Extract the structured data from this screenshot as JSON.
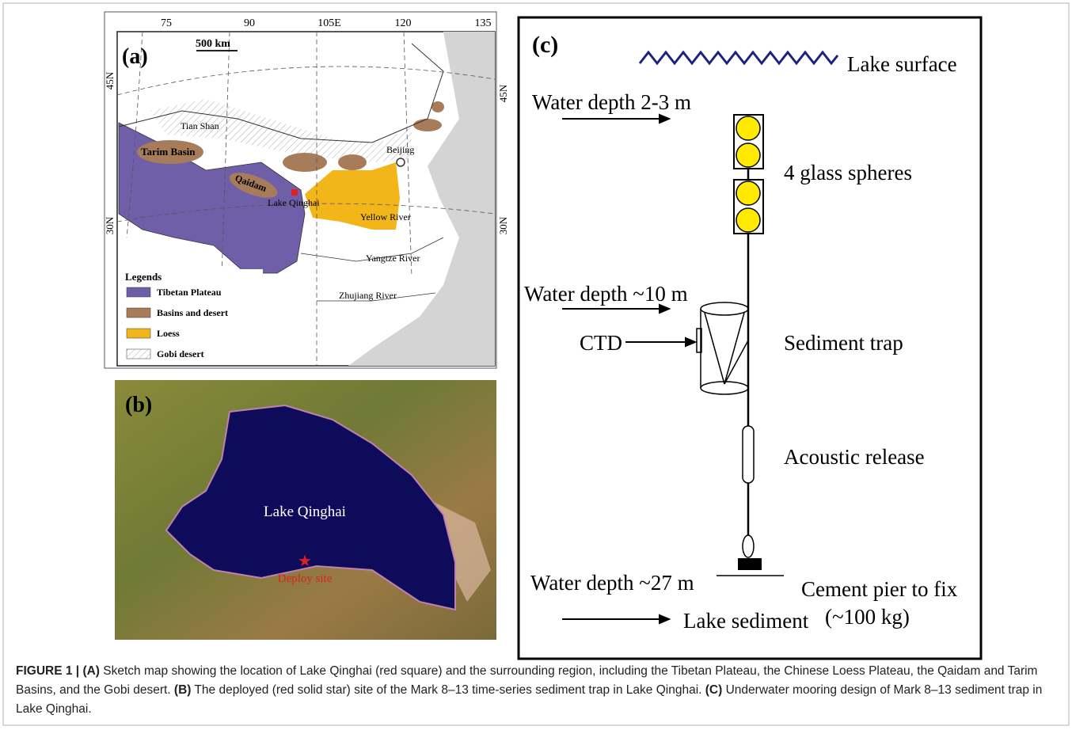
{
  "panel_a": {
    "label": "(a)",
    "scale": "500 km",
    "lon_ticks": [
      "75",
      "90",
      "105E",
      "120",
      "135"
    ],
    "lat_ticks_left": [
      "45N",
      "30N"
    ],
    "lat_ticks_right": [
      "45N",
      "30N"
    ],
    "places": [
      "Tian Shan",
      "Tarim Basin",
      "Qaidam",
      "Lake Qinghai",
      "Beijing",
      "Yellow River",
      "Yangtze River",
      "Zhujiang River"
    ],
    "legend": {
      "title": "Legends",
      "items": [
        "Tibetan Plateau",
        "Basins and desert",
        "Loess",
        "Gobi desert"
      ]
    }
  },
  "panel_b": {
    "label": "(b)",
    "lake": "Lake Qinghai",
    "site": "Deploy site"
  },
  "panel_c": {
    "label": "(c)",
    "surface": "Lake surface",
    "depth_1": "Water depth 2-3 m",
    "spheres": "4 glass spheres",
    "depth_2": "Water depth ~10 m",
    "ctd": "CTD",
    "trap": "Sediment trap",
    "release": "Acoustic release",
    "depth_3": "Water depth ~27 m",
    "pier": "Cement pier to fix",
    "pier_weight": "(~100 kg)",
    "sediment": "Lake sediment"
  },
  "caption": {
    "figure": "FIGURE 1 |",
    "parts": [
      {
        "tag": "(A)",
        "text": "Sketch map showing the location of Lake Qinghai (red square) and the surrounding region, including the Tibetan Plateau, the Chinese Loess Plateau, the Qaidam and Tarim Basins, and the Gobi desert."
      },
      {
        "tag": "(B)",
        "text": "The deployed (red solid star) site of the Mark 8–13 time-series sediment trap in Lake Qinghai."
      },
      {
        "tag": "(C)",
        "text": "Underwater mooring design of Mark 8–13 sediment trap in Lake Qinghai."
      }
    ]
  }
}
